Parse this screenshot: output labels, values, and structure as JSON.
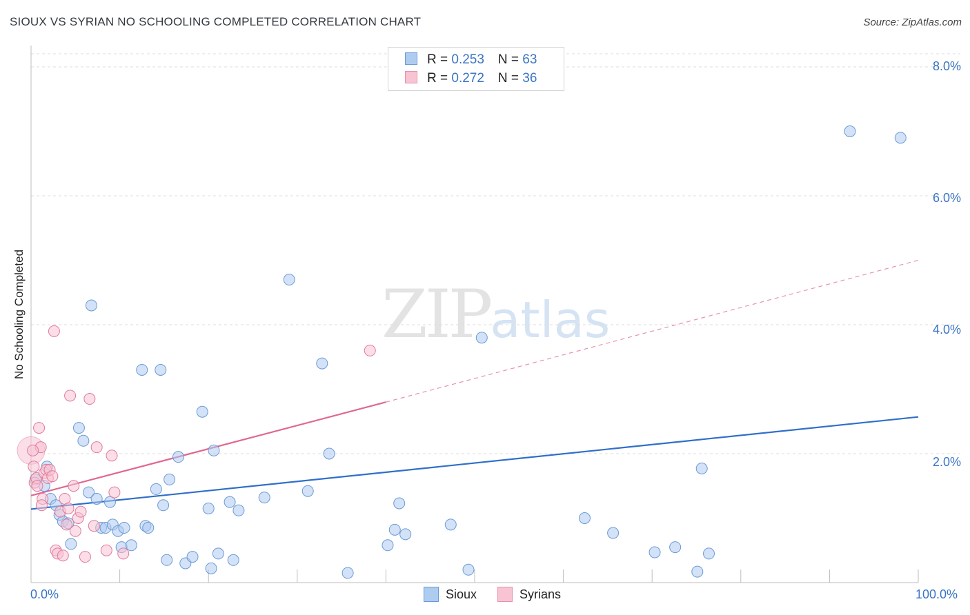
{
  "title": "SIOUX VS SYRIAN NO SCHOOLING COMPLETED CORRELATION CHART",
  "source": "Source: ZipAtlas.com",
  "watermark": {
    "zip": "ZIP",
    "atlas": "atlas"
  },
  "legend_top": [
    {
      "r_label": "R = ",
      "r_value": "0.253",
      "n_label": "N = ",
      "n_value": "63",
      "color": "#aecbf0",
      "border": "#6a9ad6"
    },
    {
      "r_label": "R = ",
      "r_value": "0.272",
      "n_label": "N = ",
      "n_value": "36",
      "color": "#f8c3d3",
      "border": "#e890ac"
    }
  ],
  "chart_data": {
    "type": "scatter",
    "title": "SIOUX VS SYRIAN NO SCHOOLING COMPLETED CORRELATION CHART",
    "xlabel": "",
    "ylabel": "No Schooling Completed",
    "xlim": [
      0,
      100
    ],
    "ylim": [
      0,
      8.0
    ],
    "y_ticks": [
      "2.0%",
      "4.0%",
      "6.0%",
      "8.0%"
    ],
    "y_tick_values": [
      2,
      4,
      6,
      8
    ],
    "x_tick_labels": [
      "0.0%",
      "100.0%"
    ],
    "grid": true,
    "legend": "bottom-center",
    "series": [
      {
        "name": "Sioux",
        "color": "#6a9ad6",
        "fill": "#aecbf0",
        "trend": {
          "x": [
            0,
            100
          ],
          "y": [
            1.14,
            2.57
          ],
          "dashed_from": null
        },
        "points": [
          [
            0.5,
            1.6
          ],
          [
            1.5,
            1.5
          ],
          [
            1.8,
            1.8
          ],
          [
            2.2,
            1.3
          ],
          [
            2.8,
            1.2
          ],
          [
            3.2,
            1.05
          ],
          [
            3.6,
            0.95
          ],
          [
            4.2,
            0.92
          ],
          [
            4.5,
            0.6
          ],
          [
            5.4,
            2.4
          ],
          [
            5.9,
            2.2
          ],
          [
            6.5,
            1.4
          ],
          [
            6.8,
            4.3
          ],
          [
            7.4,
            1.3
          ],
          [
            7.9,
            0.85
          ],
          [
            8.4,
            0.85
          ],
          [
            8.9,
            1.25
          ],
          [
            9.2,
            0.9
          ],
          [
            9.8,
            0.8
          ],
          [
            10.2,
            0.55
          ],
          [
            10.5,
            0.85
          ],
          [
            11.3,
            0.58
          ],
          [
            12.5,
            3.3
          ],
          [
            12.9,
            0.88
          ],
          [
            13.2,
            0.85
          ],
          [
            14.1,
            1.45
          ],
          [
            14.6,
            3.3
          ],
          [
            14.9,
            1.2
          ],
          [
            15.3,
            0.35
          ],
          [
            15.6,
            1.6
          ],
          [
            16.6,
            1.95
          ],
          [
            17.4,
            0.3
          ],
          [
            18.2,
            0.4
          ],
          [
            19.3,
            2.65
          ],
          [
            20.3,
            0.22
          ],
          [
            20.6,
            2.05
          ],
          [
            21.1,
            0.45
          ],
          [
            22.4,
            1.25
          ],
          [
            22.8,
            0.35
          ],
          [
            23.4,
            1.12
          ],
          [
            26.3,
            1.32
          ],
          [
            29.1,
            4.7
          ],
          [
            31.2,
            1.42
          ],
          [
            32.8,
            3.4
          ],
          [
            33.6,
            2.0
          ],
          [
            35.7,
            0.15
          ],
          [
            40.2,
            0.58
          ],
          [
            41.0,
            0.82
          ],
          [
            41.5,
            1.23
          ],
          [
            42.2,
            0.75
          ],
          [
            47.3,
            0.9
          ],
          [
            49.3,
            0.2
          ],
          [
            50.8,
            3.8
          ],
          [
            62.4,
            1.0
          ],
          [
            65.6,
            0.77
          ],
          [
            75.6,
            1.77
          ],
          [
            70.3,
            0.47
          ],
          [
            72.6,
            0.55
          ],
          [
            75.1,
            0.17
          ],
          [
            76.4,
            0.45
          ],
          [
            92.3,
            7.0
          ],
          [
            98.0,
            6.9
          ],
          [
            20.0,
            1.15
          ]
        ]
      },
      {
        "name": "Syrians",
        "color": "#e07a9b",
        "fill": "#f8c3d3",
        "trend": {
          "x": [
            0,
            40,
            100
          ],
          "y": [
            1.35,
            2.8,
            5.0
          ],
          "dashed_from": 40
        },
        "points": [
          [
            0.3,
            1.8
          ],
          [
            0.4,
            1.55
          ],
          [
            0.6,
            1.62
          ],
          [
            0.9,
            2.4
          ],
          [
            1.1,
            2.1
          ],
          [
            1.3,
            1.3
          ],
          [
            1.5,
            1.7
          ],
          [
            1.7,
            1.75
          ],
          [
            1.9,
            1.62
          ],
          [
            2.1,
            1.75
          ],
          [
            2.6,
            3.9
          ],
          [
            2.8,
            0.5
          ],
          [
            3.0,
            0.45
          ],
          [
            3.3,
            1.1
          ],
          [
            3.6,
            0.42
          ],
          [
            3.8,
            1.3
          ],
          [
            4.0,
            0.9
          ],
          [
            4.2,
            1.15
          ],
          [
            4.4,
            2.9
          ],
          [
            4.8,
            1.5
          ],
          [
            5.0,
            0.8
          ],
          [
            5.3,
            1.0
          ],
          [
            5.6,
            1.1
          ],
          [
            6.1,
            0.4
          ],
          [
            6.6,
            2.85
          ],
          [
            7.1,
            0.88
          ],
          [
            7.4,
            2.1
          ],
          [
            8.5,
            0.5
          ],
          [
            9.1,
            1.97
          ],
          [
            9.4,
            1.4
          ],
          [
            10.4,
            0.45
          ],
          [
            38.2,
            3.6
          ],
          [
            0.2,
            2.05
          ],
          [
            1.2,
            1.2
          ],
          [
            2.4,
            1.65
          ],
          [
            0.7,
            1.5
          ]
        ]
      }
    ]
  },
  "legend_bottom": [
    {
      "label": "Sioux",
      "color": "#aecbf0",
      "border": "#6a9ad6"
    },
    {
      "label": "Syrians",
      "color": "#f8c3d3",
      "border": "#e890ac"
    }
  ]
}
